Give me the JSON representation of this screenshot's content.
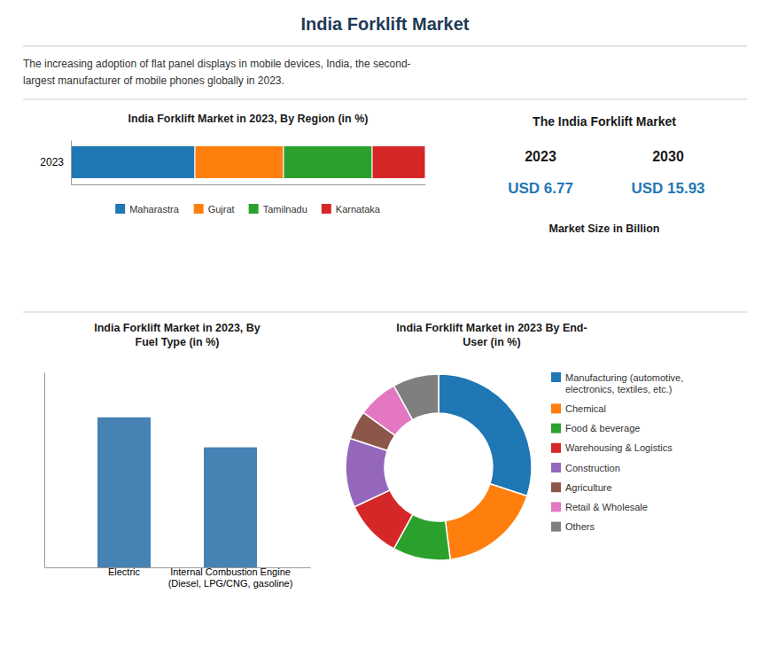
{
  "title": "India Forklift Market",
  "annotations": [
    "The increasing adoption of flat panel displays in mobile devices, India, the second-",
    "largest manufacturer of mobile phones globally in 2023.",
    "The India Forklift Market",
    "2023",
    "2030",
    "USD 6.77",
    "USD 15.93",
    "Market Size in Billion"
  ],
  "chart_data": [
    {
      "type": "bar",
      "title": "India Forklift Market in 2023, By Region (in %)",
      "orientation": "horizontal",
      "stacked": true,
      "categories": [
        "2023"
      ],
      "series": [
        {
          "name": "Maharastra",
          "values": [
            35
          ]
        },
        {
          "name": "Gujrat",
          "values": [
            25
          ]
        },
        {
          "name": "Tamilnadu",
          "values": [
            25
          ]
        },
        {
          "name": "Karnataka",
          "values": [
            15
          ]
        }
      ],
      "xlim": [
        0,
        100
      ],
      "tick_labels": "y",
      "legend": "bottom"
    },
    {
      "type": "bar",
      "title": "India Forklift Market in 2023, By\nFuel Type (in %)",
      "categories": [
        "Electric",
        "Internal Combustion Engine\n(Diesel, LPG/CNG, gasoline)"
      ],
      "values": [
        60,
        48
      ],
      "color": "#4682b4",
      "ylim": [
        0,
        78
      ],
      "tick_labels": "x"
    },
    {
      "type": "pie",
      "title": "India Forklift Market in 2023 By End-\nUser (in %)",
      "categories": [
        "Manufacturing (automotive,\nelectronics, textiles, etc.)",
        "Chemical",
        "Food & beverage",
        "Warehousing & Logistics",
        "Construction",
        "Agriculture",
        "Retail & Wholesale",
        "Others"
      ],
      "values": [
        30,
        18,
        10,
        10,
        12,
        5,
        7,
        8
      ],
      "legend": "right"
    }
  ]
}
